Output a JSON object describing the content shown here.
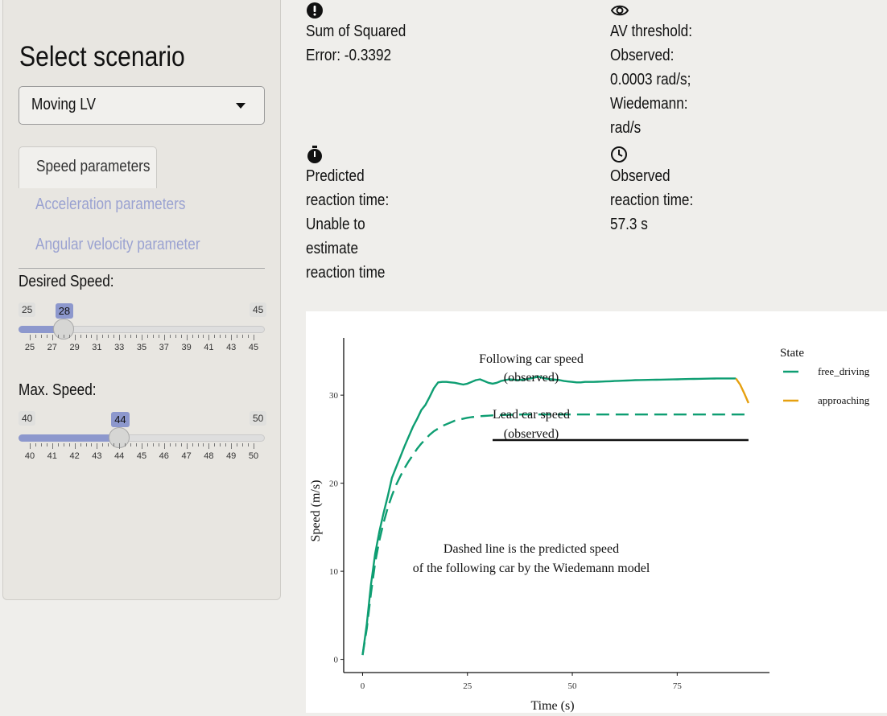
{
  "sidebar": {
    "title": "Select scenario",
    "scenario_select": {
      "value": "Moving LV"
    },
    "tabs": [
      {
        "label": "Speed parameters",
        "active": true
      },
      {
        "label": "Acceleration parameters",
        "active": false
      },
      {
        "label": "Angular velocity parameter",
        "active": false
      }
    ],
    "desired_speed": {
      "label": "Desired Speed:",
      "min": 25,
      "max": 45,
      "value": 28,
      "min_label": "25",
      "max_label": "45",
      "value_label": "28",
      "ticks": [
        "25",
        "27",
        "29",
        "31",
        "33",
        "35",
        "37",
        "39",
        "41",
        "43",
        "45"
      ]
    },
    "max_speed": {
      "label": "Max. Speed:",
      "min": 40,
      "max": 50,
      "value": 44,
      "min_label": "40",
      "max_label": "50",
      "value_label": "44",
      "ticks": [
        "40",
        "41",
        "42",
        "43",
        "44",
        "45",
        "46",
        "47",
        "48",
        "49",
        "50"
      ]
    }
  },
  "info": {
    "sse": {
      "icon": "exclamation-circle-icon",
      "lines": [
        "Sum of Squared",
        "Error: -0.3392"
      ]
    },
    "av_threshold": {
      "icon": "eye-icon",
      "lines": [
        "AV threshold:",
        "Observed:",
        "0.0003 rad/s;",
        "Wiedemann:",
        "rad/s"
      ]
    },
    "predicted_rt": {
      "icon": "stopwatch-icon",
      "lines": [
        "Predicted",
        "reaction time:",
        "Unable to",
        "estimate",
        "reaction time"
      ]
    },
    "observed_rt": {
      "icon": "clock-icon",
      "lines": [
        "Observed",
        "reaction time:",
        "57.3 s"
      ]
    }
  },
  "chart_data": {
    "type": "line",
    "xlabel": "Time (s)",
    "ylabel": "Speed (m/s)",
    "xlim": [
      -4.5,
      97
    ],
    "ylim": [
      -1.5,
      36.5
    ],
    "x_ticks": [
      0,
      25,
      50,
      75
    ],
    "y_ticks": [
      0,
      10,
      20,
      30
    ],
    "legend": {
      "title": "State",
      "position": "right",
      "entries": [
        {
          "name": "free_driving",
          "color": "#0e9e72"
        },
        {
          "name": "approaching",
          "color": "#e6a010"
        }
      ]
    },
    "series": [
      {
        "style": "solid",
        "state": "free_driving",
        "color": "#0e9e72",
        "x": [
          0,
          1,
          2,
          3,
          4,
          5,
          6,
          7,
          8,
          9,
          10,
          11,
          12,
          13,
          14,
          15,
          16,
          17,
          18,
          19,
          20,
          21,
          22,
          23,
          24,
          25,
          26,
          27,
          28,
          29,
          30,
          31,
          32,
          33,
          34,
          35,
          36,
          37,
          38,
          39,
          40,
          41,
          42,
          43,
          44,
          45,
          46,
          47,
          48,
          49,
          50,
          51,
          52,
          53,
          54,
          55,
          56,
          57,
          58,
          59,
          60,
          61,
          62,
          63,
          64,
          65,
          66,
          67,
          68,
          69,
          70,
          71,
          72,
          73,
          74,
          75,
          76,
          77,
          78,
          79,
          80,
          81,
          82,
          83,
          84,
          85,
          86,
          87,
          88,
          89
        ],
        "y": [
          0.5,
          4,
          8.5,
          12.0,
          14.5,
          16.6,
          18.5,
          20.6,
          21.8,
          23.0,
          24.2,
          25.3,
          26.4,
          27.3,
          28.3,
          28.9,
          29.8,
          30.8,
          31.45,
          31.5,
          31.5,
          31.45,
          31.4,
          31.3,
          31.2,
          31.3,
          31.5,
          31.7,
          31.8,
          31.6,
          31.4,
          31.3,
          31.4,
          31.6,
          31.7,
          31.8,
          31.75,
          31.7,
          31.75,
          31.8,
          31.9,
          32.0,
          32.1,
          31.95,
          31.85,
          31.8,
          31.75,
          31.7,
          31.6,
          31.55,
          31.5,
          31.45,
          31.45,
          31.5,
          31.5,
          31.5,
          31.52,
          31.54,
          31.56,
          31.58,
          31.6,
          31.62,
          31.64,
          31.66,
          31.68,
          31.7,
          31.71,
          31.72,
          31.73,
          31.74,
          31.75,
          31.76,
          31.77,
          31.78,
          31.79,
          31.8,
          31.81,
          31.82,
          31.83,
          31.84,
          31.85,
          31.86,
          31.87,
          31.88,
          31.89,
          31.9,
          31.9,
          31.9,
          31.9,
          31.9
        ]
      },
      {
        "style": "solid",
        "state": "approaching",
        "color": "#e6a010",
        "x": [
          89,
          90,
          91,
          92
        ],
        "y": [
          31.9,
          31.2,
          30.2,
          29.1
        ]
      },
      {
        "style": "dashed",
        "state": "free_driving",
        "color": "#0e9e72",
        "x": [
          0,
          1,
          2,
          3,
          4,
          5,
          6,
          7,
          8,
          9,
          10,
          11,
          12,
          13,
          14,
          15,
          16,
          17,
          18,
          19,
          20,
          21,
          22,
          23,
          24,
          25,
          26,
          27,
          28,
          29,
          30,
          31,
          32,
          33,
          34,
          35,
          36,
          37,
          38,
          39,
          40,
          41,
          42,
          43,
          44,
          45,
          46,
          47,
          48,
          49,
          50,
          51,
          52,
          53,
          54,
          55,
          56,
          57,
          58,
          59,
          60,
          61,
          62,
          63,
          64,
          65,
          66,
          67,
          68,
          69,
          70,
          71,
          72,
          73,
          74,
          75,
          76,
          77,
          78,
          79,
          80,
          81,
          82,
          83,
          84,
          85,
          86,
          87,
          88,
          89,
          90,
          91,
          92
        ],
        "y": [
          0.5,
          3.5,
          7.5,
          11.0,
          13.5,
          15.5,
          17.2,
          18.6,
          19.8,
          20.8,
          21.7,
          22.5,
          23.2,
          23.9,
          24.5,
          25.0,
          25.5,
          25.9,
          26.2,
          26.5,
          26.7,
          26.9,
          27.1,
          27.22,
          27.33,
          27.43,
          27.5,
          27.56,
          27.6,
          27.64,
          27.67,
          27.7,
          27.72,
          27.74,
          27.76,
          27.77,
          27.78,
          27.79,
          27.8,
          27.8,
          27.8,
          27.8,
          27.8,
          27.8,
          27.8,
          27.8,
          27.8,
          27.8,
          27.8,
          27.8,
          27.8,
          27.8,
          27.8,
          27.8,
          27.8,
          27.8,
          27.8,
          27.8,
          27.8,
          27.8,
          27.8,
          27.8,
          27.8,
          27.8,
          27.8,
          27.8,
          27.8,
          27.8,
          27.8,
          27.8,
          27.8,
          27.8,
          27.8,
          27.8,
          27.8,
          27.8,
          27.8,
          27.8,
          27.8,
          27.8,
          27.8,
          27.8,
          27.8,
          27.8,
          27.8,
          27.8,
          27.8,
          27.8,
          27.8,
          27.8,
          27.8,
          27.8,
          27.8
        ]
      },
      {
        "style": "solid",
        "state": "lead",
        "color": "#111111",
        "x": [
          31,
          92
        ],
        "y": [
          24.9,
          24.9
        ]
      }
    ],
    "annotations": [
      {
        "lines": [
          "Following car speed",
          "(observed)"
        ],
        "x": 40,
        "y": 31.4
      },
      {
        "lines": [
          "Lead car speed",
          "(observed)"
        ],
        "x": 40,
        "y": 24.9
      },
      {
        "lines": [
          "Dashed line is the predicted speed",
          "of the following car by the Wiedemann model"
        ],
        "x": 40,
        "y": 10.5
      }
    ]
  }
}
